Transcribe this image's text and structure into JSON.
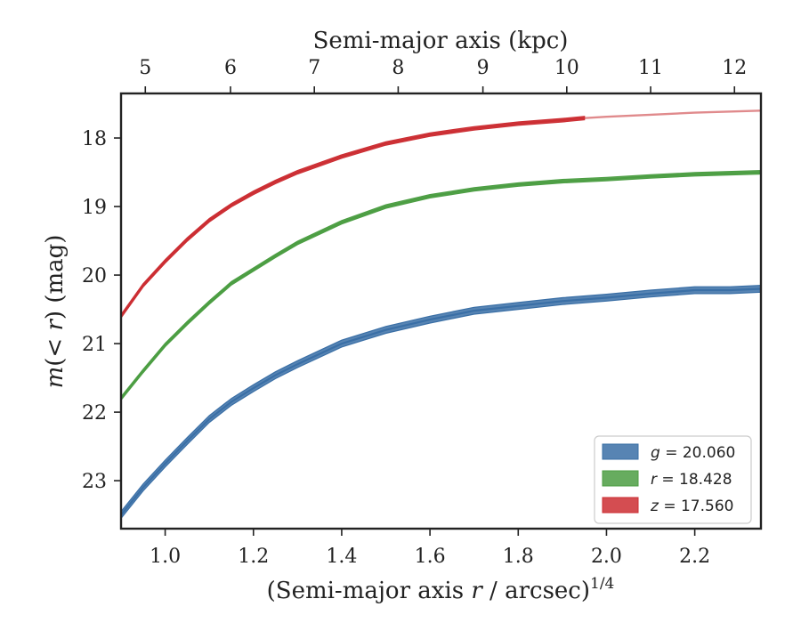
{
  "chart_data": {
    "type": "line",
    "xlabel_parts": [
      "(Semi-major axis ",
      "r",
      " / arcsec)",
      "1/4"
    ],
    "top_xlabel": "Semi-major axis (kpc)",
    "ylabel_parts": [
      "m",
      "(< ",
      "r",
      ") (mag)"
    ],
    "xlim": [
      0.9,
      2.35
    ],
    "ylim": [
      17.35,
      23.7
    ],
    "y_inverted": true,
    "x_ticks": [
      1.0,
      1.2,
      1.4,
      1.6,
      1.8,
      2.0,
      2.2
    ],
    "x_tick_labels": [
      "1.0",
      "1.2",
      "1.4",
      "1.6",
      "1.8",
      "2.0",
      "2.2"
    ],
    "y_ticks": [
      18,
      19,
      20,
      21,
      22,
      23
    ],
    "y_tick_labels": [
      "18",
      "19",
      "20",
      "21",
      "22",
      "23"
    ],
    "top_ticks": [
      {
        "kpc": 5,
        "at_x": 0.955,
        "label": "5"
      },
      {
        "kpc": 6,
        "at_x": 1.148,
        "label": "6"
      },
      {
        "kpc": 7,
        "at_x": 1.338,
        "label": "7"
      },
      {
        "kpc": 8,
        "at_x": 1.528,
        "label": "8"
      },
      {
        "kpc": 9,
        "at_x": 1.72,
        "label": "9"
      },
      {
        "kpc": 10,
        "at_x": 1.91,
        "label": "10"
      },
      {
        "kpc": 11,
        "at_x": 2.1,
        "label": "11"
      },
      {
        "kpc": 12,
        "at_x": 2.29,
        "label": "12"
      }
    ],
    "grid": false,
    "legend_position": "bottom-right",
    "series": [
      {
        "name": "g",
        "legend_label": "= 20.060",
        "color": "#3a6fa6",
        "band_width": 0.05,
        "x": [
          0.9,
          0.95,
          1.0,
          1.05,
          1.1,
          1.15,
          1.2,
          1.25,
          1.3,
          1.4,
          1.5,
          1.6,
          1.7,
          1.8,
          1.9,
          2.0,
          2.1,
          2.2,
          2.28,
          2.35
        ],
        "y": [
          23.5,
          23.1,
          22.75,
          22.42,
          22.1,
          21.85,
          21.65,
          21.46,
          21.3,
          21.0,
          20.8,
          20.65,
          20.52,
          20.45,
          20.38,
          20.33,
          20.27,
          20.22,
          20.22,
          20.2
        ]
      },
      {
        "name": "r",
        "legend_label": "= 18.428",
        "color": "#4c9e43",
        "band_width": 0.025,
        "x": [
          0.9,
          0.95,
          1.0,
          1.05,
          1.1,
          1.15,
          1.2,
          1.25,
          1.3,
          1.4,
          1.5,
          1.6,
          1.7,
          1.8,
          1.9,
          2.0,
          2.1,
          2.2,
          2.35
        ],
        "y": [
          21.8,
          21.4,
          21.02,
          20.7,
          20.4,
          20.12,
          19.92,
          19.72,
          19.53,
          19.23,
          19.0,
          18.85,
          18.75,
          18.68,
          18.63,
          18.6,
          18.56,
          18.53,
          18.5
        ]
      },
      {
        "name": "z",
        "legend_label": "= 17.560",
        "color": "#cc2e33",
        "band_width": 0.025,
        "x": [
          0.9,
          0.95,
          1.0,
          1.05,
          1.1,
          1.15,
          1.2,
          1.25,
          1.3,
          1.4,
          1.5,
          1.6,
          1.7,
          1.8,
          1.9,
          1.95
        ],
        "y": [
          20.6,
          20.15,
          19.8,
          19.48,
          19.2,
          18.98,
          18.8,
          18.64,
          18.5,
          18.27,
          18.08,
          17.95,
          17.86,
          17.79,
          17.74,
          17.71
        ],
        "extension": {
          "color": "#e08a8c",
          "x": [
            1.95,
            2.0,
            2.1,
            2.2,
            2.35
          ],
          "y": [
            17.71,
            17.69,
            17.66,
            17.63,
            17.6
          ]
        }
      }
    ]
  }
}
